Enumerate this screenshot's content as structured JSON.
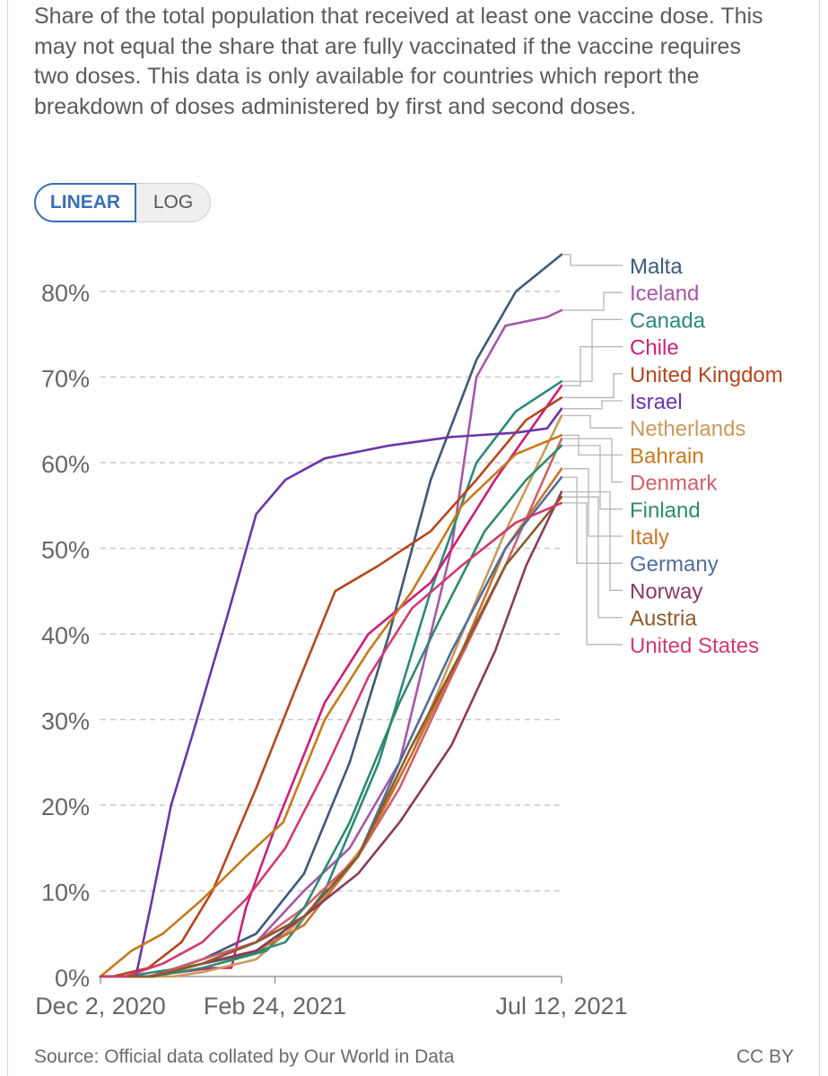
{
  "subtitle": "Share of the total population that received at least one vaccine dose. This may not equal the share that are fully vaccinated if the vaccine requires two doses. This data is only available for countries which report the breakdown of doses administered by first and second doses.",
  "scale_toggle": {
    "linear_label": "LINEAR",
    "log_label": "LOG",
    "selected": "LINEAR"
  },
  "footer": {
    "source": "Source: Official data collated by Our World in Data",
    "license": "CC BY"
  },
  "chart_data": {
    "type": "line",
    "title": "",
    "xlabel": "",
    "ylabel": "",
    "x_ticks": [
      "Dec 2, 2020",
      "Feb 24, 2021",
      "Jul 12, 2021"
    ],
    "y_ticks": [
      "0%",
      "10%",
      "20%",
      "30%",
      "40%",
      "50%",
      "60%",
      "70%",
      "80%"
    ],
    "ylim": [
      0,
      85
    ],
    "xlim": [
      "2020-12-02",
      "2021-07-12"
    ],
    "grid": "horizontal dashed",
    "legend": "right, labels at line ends",
    "series": [
      {
        "name": "Malta",
        "color": "#3c5a7a",
        "points": [
          [
            "2020-12-02",
            0
          ],
          [
            "2020-12-26",
            0
          ],
          [
            "2021-01-20",
            2
          ],
          [
            "2021-02-15",
            5
          ],
          [
            "2021-03-10",
            12
          ],
          [
            "2021-04-01",
            25
          ],
          [
            "2021-04-20",
            40
          ],
          [
            "2021-05-10",
            58
          ],
          [
            "2021-06-01",
            72
          ],
          [
            "2021-06-20",
            80
          ],
          [
            "2021-07-12",
            84.3
          ]
        ]
      },
      {
        "name": "Iceland",
        "color": "#a657a9",
        "points": [
          [
            "2020-12-02",
            0
          ],
          [
            "2020-12-28",
            0
          ],
          [
            "2021-01-20",
            2
          ],
          [
            "2021-02-15",
            4
          ],
          [
            "2021-03-10",
            10
          ],
          [
            "2021-04-01",
            15
          ],
          [
            "2021-04-25",
            25
          ],
          [
            "2021-05-20",
            50
          ],
          [
            "2021-06-01",
            70
          ],
          [
            "2021-06-15",
            76
          ],
          [
            "2021-07-05",
            77
          ],
          [
            "2021-07-12",
            77.8
          ]
        ]
      },
      {
        "name": "Canada",
        "color": "#2b8a7a",
        "points": [
          [
            "2020-12-02",
            0
          ],
          [
            "2020-12-14",
            0
          ],
          [
            "2021-01-10",
            1
          ],
          [
            "2021-02-10",
            2.5
          ],
          [
            "2021-03-01",
            4
          ],
          [
            "2021-03-20",
            10
          ],
          [
            "2021-04-15",
            25
          ],
          [
            "2021-05-10",
            45
          ],
          [
            "2021-06-01",
            60
          ],
          [
            "2021-06-20",
            66
          ],
          [
            "2021-07-12",
            69.5
          ]
        ]
      },
      {
        "name": "Chile",
        "color": "#c9207a",
        "points": [
          [
            "2020-12-02",
            0
          ],
          [
            "2020-12-24",
            0
          ],
          [
            "2021-01-25",
            1
          ],
          [
            "2021-02-03",
            1
          ],
          [
            "2021-02-10",
            8
          ],
          [
            "2021-02-25",
            18
          ],
          [
            "2021-03-20",
            32
          ],
          [
            "2021-04-10",
            40
          ],
          [
            "2021-05-10",
            46
          ],
          [
            "2021-06-10",
            58
          ],
          [
            "2021-07-12",
            69
          ]
        ]
      },
      {
        "name": "United Kingdom",
        "color": "#b5461b",
        "points": [
          [
            "2020-12-02",
            0
          ],
          [
            "2020-12-08",
            0
          ],
          [
            "2020-12-25",
            1
          ],
          [
            "2021-01-10",
            4
          ],
          [
            "2021-01-25",
            10
          ],
          [
            "2021-02-15",
            22
          ],
          [
            "2021-03-05",
            33
          ],
          [
            "2021-03-25",
            45
          ],
          [
            "2021-04-15",
            48
          ],
          [
            "2021-05-10",
            52
          ],
          [
            "2021-06-01",
            58
          ],
          [
            "2021-06-25",
            65
          ],
          [
            "2021-07-12",
            67.6
          ]
        ]
      },
      {
        "name": "Israel",
        "color": "#6b35a8",
        "points": [
          [
            "2020-12-02",
            0
          ],
          [
            "2020-12-19",
            0
          ],
          [
            "2020-12-26",
            8
          ],
          [
            "2021-01-05",
            20
          ],
          [
            "2021-01-15",
            28
          ],
          [
            "2021-02-01",
            42
          ],
          [
            "2021-02-15",
            54
          ],
          [
            "2021-03-01",
            58
          ],
          [
            "2021-03-20",
            60.5
          ],
          [
            "2021-04-20",
            62
          ],
          [
            "2021-05-20",
            63
          ],
          [
            "2021-06-20",
            63.5
          ],
          [
            "2021-07-05",
            64
          ],
          [
            "2021-07-12",
            66.3
          ]
        ]
      },
      {
        "name": "Netherlands",
        "color": "#c99a5c",
        "points": [
          [
            "2020-12-02",
            0
          ],
          [
            "2021-01-06",
            0
          ],
          [
            "2021-01-20",
            0.5
          ],
          [
            "2021-02-15",
            2
          ],
          [
            "2021-03-15",
            8
          ],
          [
            "2021-04-10",
            16
          ],
          [
            "2021-05-01",
            26
          ],
          [
            "2021-05-25",
            40
          ],
          [
            "2021-06-15",
            52
          ],
          [
            "2021-07-12",
            65.5
          ]
        ]
      },
      {
        "name": "Bahrain",
        "color": "#c7791c",
        "points": [
          [
            "2020-12-02",
            0
          ],
          [
            "2020-12-17",
            3
          ],
          [
            "2021-01-01",
            5
          ],
          [
            "2021-01-20",
            9
          ],
          [
            "2021-02-10",
            14
          ],
          [
            "2021-02-28",
            18
          ],
          [
            "2021-03-20",
            30
          ],
          [
            "2021-04-10",
            38
          ],
          [
            "2021-05-01",
            45
          ],
          [
            "2021-05-25",
            55
          ],
          [
            "2021-06-20",
            61
          ],
          [
            "2021-07-12",
            63.2
          ]
        ]
      },
      {
        "name": "Denmark",
        "color": "#d0606b",
        "points": [
          [
            "2020-12-02",
            0
          ],
          [
            "2020-12-27",
            0
          ],
          [
            "2021-01-20",
            2
          ],
          [
            "2021-02-15",
            4
          ],
          [
            "2021-03-10",
            8
          ],
          [
            "2021-04-05",
            14
          ],
          [
            "2021-04-25",
            22
          ],
          [
            "2021-05-20",
            35
          ],
          [
            "2021-06-15",
            48
          ],
          [
            "2021-07-12",
            62.8
          ]
        ]
      },
      {
        "name": "Finland",
        "color": "#2f8a6c",
        "points": [
          [
            "2020-12-02",
            0
          ],
          [
            "2020-12-27",
            0
          ],
          [
            "2021-01-20",
            1
          ],
          [
            "2021-02-20",
            3
          ],
          [
            "2021-03-10",
            8
          ],
          [
            "2021-04-01",
            18
          ],
          [
            "2021-04-25",
            32
          ],
          [
            "2021-05-15",
            42
          ],
          [
            "2021-06-05",
            52
          ],
          [
            "2021-06-25",
            58
          ],
          [
            "2021-07-12",
            62
          ]
        ]
      },
      {
        "name": "Italy",
        "color": "#c7742b",
        "points": [
          [
            "2020-12-02",
            0
          ],
          [
            "2020-12-27",
            0
          ],
          [
            "2021-01-20",
            1.5
          ],
          [
            "2021-02-15",
            3
          ],
          [
            "2021-03-10",
            6
          ],
          [
            "2021-04-05",
            14
          ],
          [
            "2021-05-01",
            26
          ],
          [
            "2021-05-25",
            38
          ],
          [
            "2021-06-15",
            50
          ],
          [
            "2021-07-12",
            59.3
          ]
        ]
      },
      {
        "name": "Germany",
        "color": "#4f6f9c",
        "points": [
          [
            "2020-12-02",
            0
          ],
          [
            "2020-12-27",
            0
          ],
          [
            "2021-01-20",
            1.5
          ],
          [
            "2021-02-15",
            4
          ],
          [
            "2021-03-10",
            7
          ],
          [
            "2021-04-05",
            14
          ],
          [
            "2021-04-25",
            25
          ],
          [
            "2021-05-20",
            38
          ],
          [
            "2021-06-15",
            50
          ],
          [
            "2021-07-12",
            58.3
          ]
        ]
      },
      {
        "name": "Norway",
        "color": "#8a3a5c",
        "points": [
          [
            "2020-12-02",
            0
          ],
          [
            "2020-12-27",
            0
          ],
          [
            "2021-01-20",
            1.5
          ],
          [
            "2021-02-15",
            3
          ],
          [
            "2021-03-10",
            7
          ],
          [
            "2021-04-05",
            12
          ],
          [
            "2021-04-25",
            18
          ],
          [
            "2021-05-20",
            27
          ],
          [
            "2021-06-10",
            38
          ],
          [
            "2021-06-25",
            48
          ],
          [
            "2021-07-12",
            56.6
          ]
        ]
      },
      {
        "name": "Austria",
        "color": "#8c5a2b",
        "points": [
          [
            "2020-12-02",
            0
          ],
          [
            "2020-12-27",
            0
          ],
          [
            "2021-01-20",
            1.5
          ],
          [
            "2021-02-15",
            4
          ],
          [
            "2021-03-10",
            7
          ],
          [
            "2021-04-05",
            14
          ],
          [
            "2021-05-01",
            27
          ],
          [
            "2021-05-25",
            38
          ],
          [
            "2021-06-15",
            48
          ],
          [
            "2021-07-12",
            56
          ]
        ]
      },
      {
        "name": "United States",
        "color": "#d03a6e",
        "points": [
          [
            "2020-12-02",
            0
          ],
          [
            "2020-12-14",
            0
          ],
          [
            "2021-01-01",
            1.5
          ],
          [
            "2021-01-20",
            4
          ],
          [
            "2021-02-10",
            9
          ],
          [
            "2021-03-01",
            15
          ],
          [
            "2021-03-20",
            24
          ],
          [
            "2021-04-10",
            35
          ],
          [
            "2021-05-01",
            43
          ],
          [
            "2021-05-25",
            48
          ],
          [
            "2021-06-20",
            53
          ],
          [
            "2021-07-12",
            55.3
          ]
        ]
      }
    ]
  }
}
